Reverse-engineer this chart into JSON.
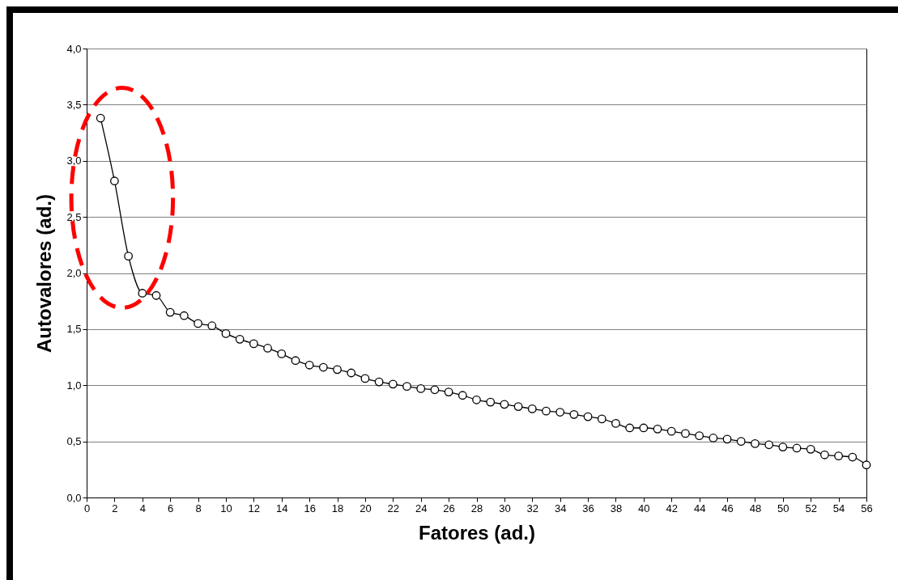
{
  "chart_data": {
    "type": "line",
    "xlabel": "Fatores (ad.)",
    "ylabel": "Autovalores (ad.)",
    "x": [
      1,
      2,
      3,
      4,
      5,
      6,
      7,
      8,
      9,
      10,
      11,
      12,
      13,
      14,
      15,
      16,
      17,
      18,
      19,
      20,
      21,
      22,
      23,
      24,
      25,
      26,
      27,
      28,
      29,
      30,
      31,
      32,
      33,
      34,
      35,
      36,
      37,
      38,
      39,
      40,
      41,
      42,
      43,
      44,
      45,
      46,
      47,
      48,
      49,
      50,
      51,
      52,
      53,
      54,
      55,
      56
    ],
    "series": [
      {
        "color": "#000000",
        "values": [
          3.38,
          2.82,
          2.15,
          1.82,
          1.8,
          1.65,
          1.62,
          1.55,
          1.53,
          1.46,
          1.41,
          1.37,
          1.33,
          1.28,
          1.22,
          1.18,
          1.16,
          1.14,
          1.11,
          1.06,
          1.03,
          1.01,
          0.99,
          0.97,
          0.96,
          0.94,
          0.91,
          0.87,
          0.85,
          0.83,
          0.81,
          0.79,
          0.77,
          0.76,
          0.74,
          0.72,
          0.7,
          0.66,
          0.62,
          0.62,
          0.61,
          0.59,
          0.57,
          0.55,
          0.53,
          0.52,
          0.5,
          0.48,
          0.47,
          0.45,
          0.44,
          0.43,
          0.38,
          0.37,
          0.36,
          0.29
        ]
      }
    ],
    "xlim": [
      0,
      56
    ],
    "xticks": [
      0,
      2,
      4,
      6,
      8,
      10,
      12,
      14,
      16,
      18,
      20,
      22,
      24,
      26,
      28,
      30,
      32,
      34,
      36,
      38,
      40,
      42,
      44,
      46,
      48,
      50,
      52,
      54,
      56
    ],
    "ylim": [
      0,
      4
    ],
    "yticks": [
      {
        "value": 0,
        "label": "0,0"
      },
      {
        "value": 0.5,
        "label": "0,5"
      },
      {
        "value": 1,
        "label": "1,0"
      },
      {
        "value": 1.5,
        "label": "1,5"
      },
      {
        "value": 2,
        "label": "2,0"
      },
      {
        "value": 2.5,
        "label": "2,5"
      },
      {
        "value": 3,
        "label": "3,0"
      },
      {
        "value": 3.5,
        "label": "3,5"
      },
      {
        "value": 4,
        "label": "4,0"
      }
    ],
    "grid": "y",
    "marker": "circle",
    "line_style": "solid"
  }
}
